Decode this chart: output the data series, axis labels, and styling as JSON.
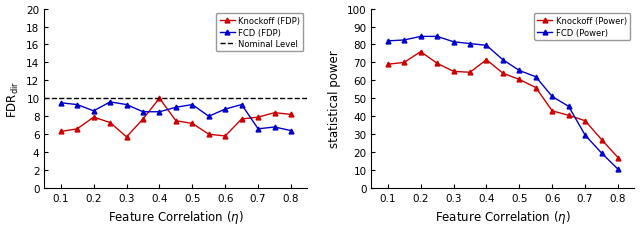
{
  "left_x": [
    0.1,
    0.15,
    0.2,
    0.25,
    0.3,
    0.35,
    0.4,
    0.45,
    0.5,
    0.55,
    0.6,
    0.65,
    0.7,
    0.75,
    0.8
  ],
  "knockoff_fdp": [
    6.3,
    6.6,
    7.9,
    7.3,
    5.7,
    7.7,
    10.0,
    7.5,
    7.2,
    6.0,
    5.8,
    7.7,
    7.9,
    8.4,
    8.2
  ],
  "fcd_fdp": [
    9.5,
    9.3,
    8.6,
    9.6,
    9.3,
    8.5,
    8.5,
    9.0,
    9.3,
    8.0,
    8.8,
    9.3,
    6.6,
    6.8,
    6.4
  ],
  "nominal_level": 10.0,
  "left_ylim": [
    0,
    20
  ],
  "left_yticks": [
    0,
    2,
    4,
    6,
    8,
    10,
    12,
    14,
    16,
    18,
    20
  ],
  "right_x": [
    0.1,
    0.15,
    0.2,
    0.25,
    0.3,
    0.35,
    0.4,
    0.45,
    0.5,
    0.55,
    0.6,
    0.65,
    0.7,
    0.75,
    0.8
  ],
  "knockoff_power": [
    69.0,
    70.0,
    76.0,
    69.5,
    65.0,
    64.5,
    71.5,
    64.0,
    60.5,
    56.0,
    43.0,
    40.5,
    37.5,
    27.0,
    17.0
  ],
  "fcd_power": [
    82.0,
    82.5,
    84.5,
    84.5,
    81.5,
    80.5,
    79.5,
    71.5,
    65.5,
    62.0,
    51.0,
    45.5,
    29.5,
    19.5,
    10.5
  ],
  "right_ylim": [
    0,
    100
  ],
  "right_yticks": [
    0,
    10,
    20,
    30,
    40,
    50,
    60,
    70,
    80,
    90,
    100
  ],
  "xlim": [
    0.05,
    0.85
  ],
  "xticks": [
    0.1,
    0.2,
    0.3,
    0.4,
    0.5,
    0.6,
    0.7,
    0.8
  ],
  "xtick_labels": [
    "0.1",
    "0.2",
    "0.3",
    "0.4",
    "0.5",
    "0.6",
    "0.7",
    "0.8"
  ],
  "xlabel": "Feature Correlation ($\\eta$)",
  "left_ylabel": "FDR$_{\\mathrm{dir}}$",
  "right_ylabel": "statistical power",
  "red_color": "#cc0000",
  "blue_color": "#0000cc",
  "knockoff_label_fdp": "Knockoff (FDP)",
  "fcd_label_fdp": "FCD (FDP)",
  "nominal_label": "Nominal Level",
  "knockoff_label_power": "Knockoff (Power)",
  "fcd_label_power": "FCD (Power)",
  "fig_width": 6.4,
  "fig_height": 2.32,
  "dpi": 100
}
